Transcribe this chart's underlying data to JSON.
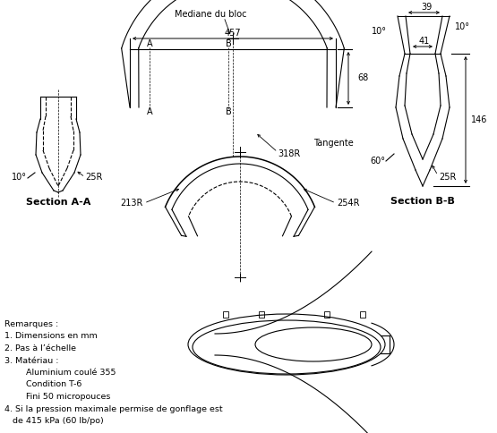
{
  "background_color": "#ffffff",
  "line_color": "#000000",
  "notes": [
    "Remarques :",
    "1. Dimensions en mm",
    "2. Pas à l’échelle",
    "3. Matériau :",
    "        Aluminium coulé 355",
    "        Condition T-6",
    "        Fini 50 micropouces",
    "4. Si la pression maximale permise de gonflage est",
    "   de 415 kPa (60 lb/po)"
  ],
  "mediane_label": "Mediane du bloc",
  "dim_457": "457",
  "dim_68": "68",
  "dim_318R": "318R",
  "dim_213R": "213R",
  "dim_254R": "254R",
  "dim_25R_AA": "25R",
  "dim_10deg_AA": "10°",
  "dim_39": "39",
  "dim_10deg_BB1": "10°",
  "dim_10deg_BB2": "10°",
  "dim_41": "41",
  "dim_146": "146",
  "dim_25R_BB": "25R",
  "dim_60deg": "60°",
  "tangente_label": "Tangente",
  "section_AA_label": "Section A-A",
  "section_BB_label": "Section B-B"
}
